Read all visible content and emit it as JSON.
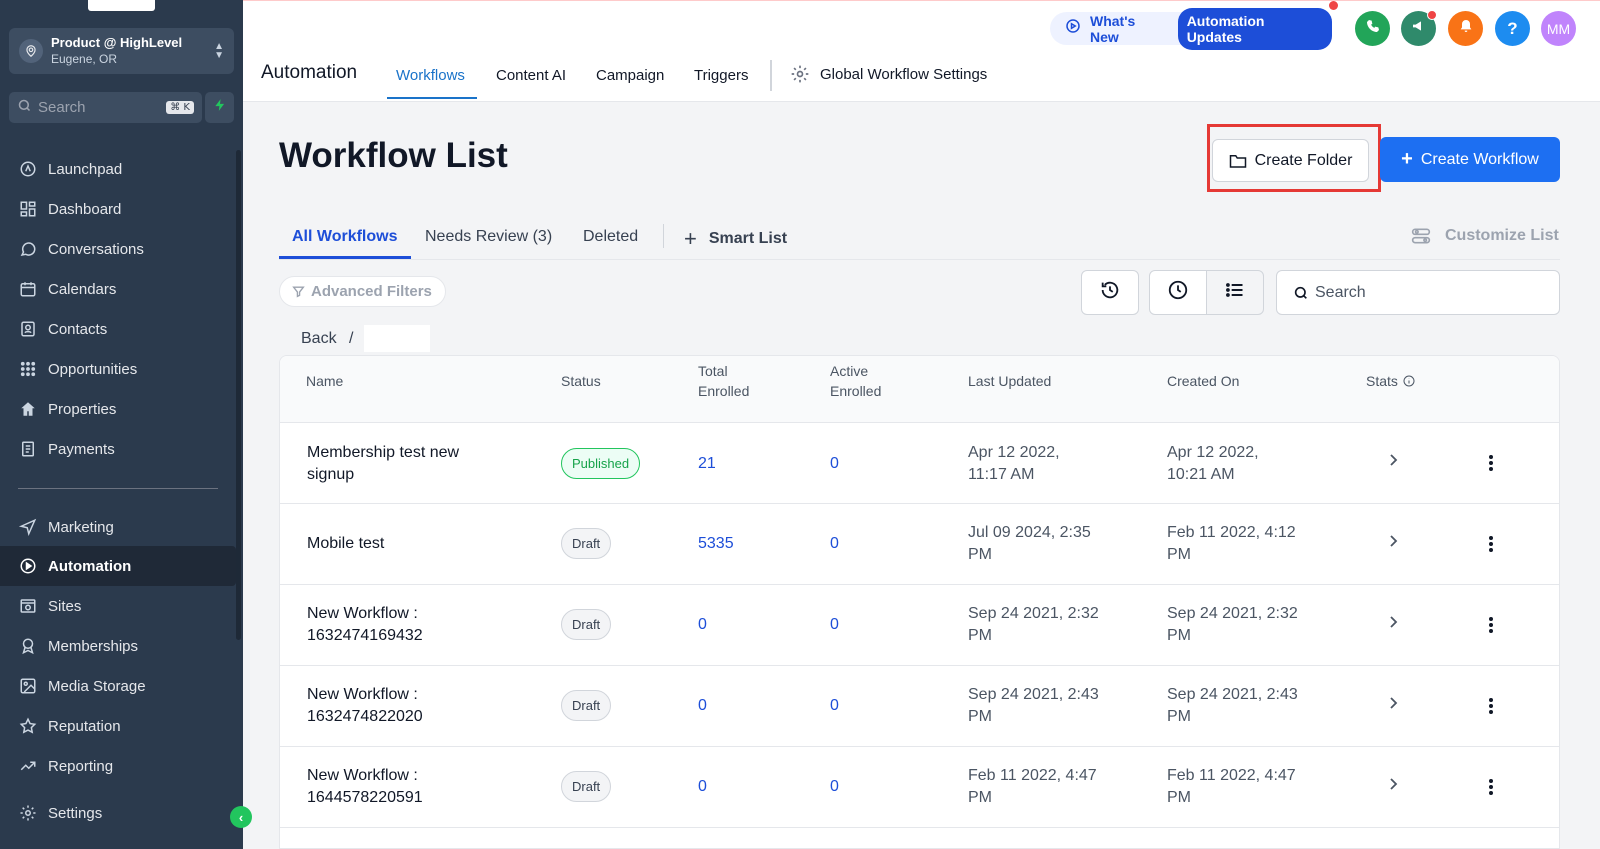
{
  "sidebar": {
    "account": {
      "name": "Product @ HighLevel",
      "location": "Eugene, OR"
    },
    "search": {
      "placeholder": "Search",
      "shortcut": "⌘ K"
    },
    "items": [
      {
        "label": "Launchpad",
        "icon": "rocket-icon"
      },
      {
        "label": "Dashboard",
        "icon": "grid-icon"
      },
      {
        "label": "Conversations",
        "icon": "chat-icon"
      },
      {
        "label": "Calendars",
        "icon": "calendar-icon"
      },
      {
        "label": "Contacts",
        "icon": "contacts-icon"
      },
      {
        "label": "Opportunities",
        "icon": "opportunities-icon"
      },
      {
        "label": "Properties",
        "icon": "home-icon"
      },
      {
        "label": "Payments",
        "icon": "receipt-icon"
      },
      {
        "label": "Marketing",
        "icon": "send-icon"
      },
      {
        "label": "Automation",
        "icon": "automation-icon",
        "active": true
      },
      {
        "label": "Sites",
        "icon": "sites-icon"
      },
      {
        "label": "Memberships",
        "icon": "badge-icon"
      },
      {
        "label": "Media Storage",
        "icon": "image-icon"
      },
      {
        "label": "Reputation",
        "icon": "star-icon"
      },
      {
        "label": "Reporting",
        "icon": "trend-icon"
      },
      {
        "label": "Settings",
        "icon": "gear-icon"
      }
    ]
  },
  "topbar": {
    "whats_new": "What's New",
    "updates_pill": "Automation Updates",
    "avatar_initials": "MM",
    "help_glyph": "?",
    "title": "Automation",
    "tabs": [
      "Workflows",
      "Content AI",
      "Campaign",
      "Triggers"
    ],
    "settings_link": "Global Workflow Settings",
    "colors": {
      "phone": "#22a559",
      "megaphone": "#2f8a6b",
      "bell": "#f97316",
      "help": "#1d8cf0",
      "avatar": "#c084fc"
    }
  },
  "main": {
    "title": "Workflow List",
    "create_folder": "Create Folder",
    "create_workflow": "Create Workflow",
    "subtabs": [
      "All Workflows",
      "Needs Review (3)",
      "Deleted"
    ],
    "smart_list": "Smart List",
    "customize_list": "Customize List",
    "advanced_filters": "Advanced Filters",
    "search_placeholder": "Search",
    "breadcrumb": {
      "back": "Back",
      "sep": "/"
    }
  },
  "table": {
    "headers": {
      "name": "Name",
      "status": "Status",
      "total_1": "Total",
      "total_2": "Enrolled",
      "active_1": "Active",
      "active_2": "Enrolled",
      "last_updated": "Last Updated",
      "created_on": "Created On",
      "stats": "Stats"
    },
    "rows": [
      {
        "name_1": "Membership test new",
        "name_2": "signup",
        "status": "Published",
        "total": "21",
        "active": "0",
        "updated_1": "Apr 12 2022,",
        "updated_2": "11:17 AM",
        "created_1": "Apr 12 2022,",
        "created_2": "10:21 AM"
      },
      {
        "name_1": "Mobile test",
        "name_2": "",
        "status": "Draft",
        "total": "5335",
        "active": "0",
        "updated_1": "Jul 09 2024, 2:35",
        "updated_2": "PM",
        "created_1": "Feb 11 2022, 4:12",
        "created_2": "PM"
      },
      {
        "name_1": "New Workflow :",
        "name_2": "1632474169432",
        "status": "Draft",
        "total": "0",
        "active": "0",
        "updated_1": "Sep 24 2021, 2:32",
        "updated_2": "PM",
        "created_1": "Sep 24 2021, 2:32",
        "created_2": "PM"
      },
      {
        "name_1": "New Workflow :",
        "name_2": "1632474822020",
        "status": "Draft",
        "total": "0",
        "active": "0",
        "updated_1": "Sep 24 2021, 2:43",
        "updated_2": "PM",
        "created_1": "Sep 24 2021, 2:43",
        "created_2": "PM"
      },
      {
        "name_1": "New Workflow :",
        "name_2": "1644578220591",
        "status": "Draft",
        "total": "0",
        "active": "0",
        "updated_1": "Feb 11 2022, 4:47",
        "updated_2": "PM",
        "created_1": "Feb 11 2022, 4:47",
        "created_2": "PM"
      }
    ]
  }
}
